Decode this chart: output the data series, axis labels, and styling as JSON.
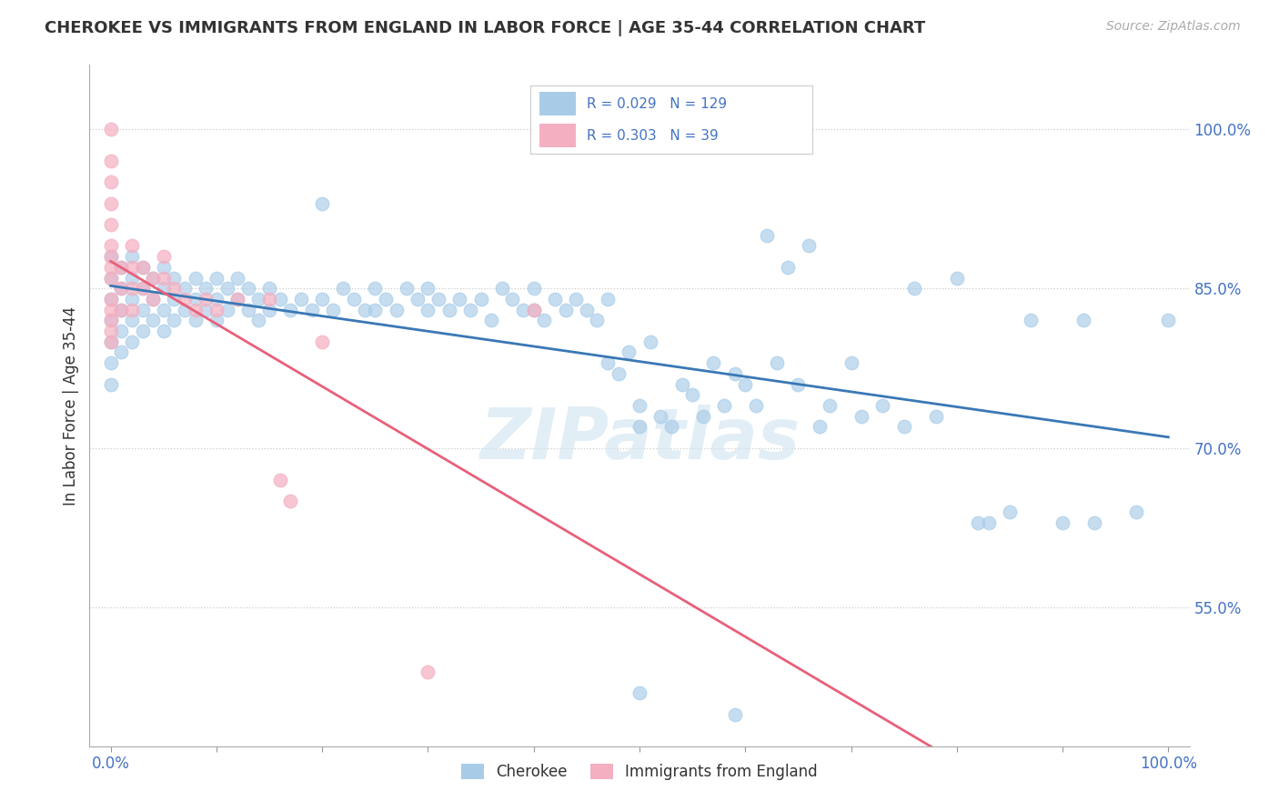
{
  "title": "CHEROKEE VS IMMIGRANTS FROM ENGLAND IN LABOR FORCE | AGE 35-44 CORRELATION CHART",
  "source": "Source: ZipAtlas.com",
  "ylabel": "In Labor Force | Age 35-44",
  "xlim": [
    -0.02,
    1.02
  ],
  "ylim": [
    0.42,
    1.06
  ],
  "ytick_positions": [
    0.55,
    0.7,
    0.85,
    1.0
  ],
  "yticklabels": [
    "55.0%",
    "70.0%",
    "85.0%",
    "100.0%"
  ],
  "legend_labels": [
    "Cherokee",
    "Immigrants from England"
  ],
  "blue_R": "R = 0.029",
  "blue_N": "N = 129",
  "pink_R": "R = 0.303",
  "pink_N": "N = 39",
  "blue_color": "#a8cce8",
  "pink_color": "#f4afc0",
  "blue_line_color": "#3a78b5",
  "pink_line_color": "#e8607a",
  "watermark": "ZIPatlas",
  "blue_points": [
    [
      0.0,
      0.88
    ],
    [
      0.0,
      0.86
    ],
    [
      0.0,
      0.84
    ],
    [
      0.0,
      0.82
    ],
    [
      0.0,
      0.8
    ],
    [
      0.0,
      0.78
    ],
    [
      0.0,
      0.76
    ],
    [
      0.01,
      0.87
    ],
    [
      0.01,
      0.85
    ],
    [
      0.01,
      0.83
    ],
    [
      0.01,
      0.81
    ],
    [
      0.01,
      0.79
    ],
    [
      0.02,
      0.88
    ],
    [
      0.02,
      0.86
    ],
    [
      0.02,
      0.84
    ],
    [
      0.02,
      0.82
    ],
    [
      0.02,
      0.8
    ],
    [
      0.03,
      0.87
    ],
    [
      0.03,
      0.85
    ],
    [
      0.03,
      0.83
    ],
    [
      0.03,
      0.81
    ],
    [
      0.04,
      0.86
    ],
    [
      0.04,
      0.84
    ],
    [
      0.04,
      0.82
    ],
    [
      0.05,
      0.87
    ],
    [
      0.05,
      0.85
    ],
    [
      0.05,
      0.83
    ],
    [
      0.05,
      0.81
    ],
    [
      0.06,
      0.86
    ],
    [
      0.06,
      0.84
    ],
    [
      0.06,
      0.82
    ],
    [
      0.07,
      0.85
    ],
    [
      0.07,
      0.83
    ],
    [
      0.08,
      0.86
    ],
    [
      0.08,
      0.84
    ],
    [
      0.08,
      0.82
    ],
    [
      0.09,
      0.85
    ],
    [
      0.09,
      0.83
    ],
    [
      0.1,
      0.86
    ],
    [
      0.1,
      0.84
    ],
    [
      0.1,
      0.82
    ],
    [
      0.11,
      0.85
    ],
    [
      0.11,
      0.83
    ],
    [
      0.12,
      0.86
    ],
    [
      0.12,
      0.84
    ],
    [
      0.13,
      0.85
    ],
    [
      0.13,
      0.83
    ],
    [
      0.14,
      0.84
    ],
    [
      0.14,
      0.82
    ],
    [
      0.15,
      0.85
    ],
    [
      0.15,
      0.83
    ],
    [
      0.16,
      0.84
    ],
    [
      0.17,
      0.83
    ],
    [
      0.18,
      0.84
    ],
    [
      0.19,
      0.83
    ],
    [
      0.2,
      0.93
    ],
    [
      0.2,
      0.84
    ],
    [
      0.21,
      0.83
    ],
    [
      0.22,
      0.85
    ],
    [
      0.23,
      0.84
    ],
    [
      0.24,
      0.83
    ],
    [
      0.25,
      0.85
    ],
    [
      0.25,
      0.83
    ],
    [
      0.26,
      0.84
    ],
    [
      0.27,
      0.83
    ],
    [
      0.28,
      0.85
    ],
    [
      0.29,
      0.84
    ],
    [
      0.3,
      0.83
    ],
    [
      0.3,
      0.85
    ],
    [
      0.31,
      0.84
    ],
    [
      0.32,
      0.83
    ],
    [
      0.33,
      0.84
    ],
    [
      0.34,
      0.83
    ],
    [
      0.35,
      0.84
    ],
    [
      0.36,
      0.82
    ],
    [
      0.37,
      0.85
    ],
    [
      0.38,
      0.84
    ],
    [
      0.39,
      0.83
    ],
    [
      0.4,
      0.85
    ],
    [
      0.4,
      0.83
    ],
    [
      0.41,
      0.82
    ],
    [
      0.42,
      0.84
    ],
    [
      0.43,
      0.83
    ],
    [
      0.44,
      0.84
    ],
    [
      0.45,
      0.83
    ],
    [
      0.46,
      0.82
    ],
    [
      0.47,
      0.84
    ],
    [
      0.47,
      0.78
    ],
    [
      0.48,
      0.77
    ],
    [
      0.49,
      0.79
    ],
    [
      0.5,
      0.74
    ],
    [
      0.5,
      0.72
    ],
    [
      0.51,
      0.8
    ],
    [
      0.52,
      0.73
    ],
    [
      0.53,
      0.72
    ],
    [
      0.54,
      0.76
    ],
    [
      0.55,
      0.75
    ],
    [
      0.56,
      0.73
    ],
    [
      0.57,
      0.78
    ],
    [
      0.58,
      0.74
    ],
    [
      0.59,
      0.77
    ],
    [
      0.6,
      0.76
    ],
    [
      0.61,
      0.74
    ],
    [
      0.62,
      0.9
    ],
    [
      0.63,
      0.78
    ],
    [
      0.64,
      0.87
    ],
    [
      0.65,
      0.76
    ],
    [
      0.66,
      0.89
    ],
    [
      0.67,
      0.72
    ],
    [
      0.68,
      0.74
    ],
    [
      0.7,
      0.78
    ],
    [
      0.71,
      0.73
    ],
    [
      0.73,
      0.74
    ],
    [
      0.75,
      0.72
    ],
    [
      0.76,
      0.85
    ],
    [
      0.78,
      0.73
    ],
    [
      0.8,
      0.86
    ],
    [
      0.82,
      0.63
    ],
    [
      0.83,
      0.63
    ],
    [
      0.85,
      0.64
    ],
    [
      0.87,
      0.82
    ],
    [
      0.9,
      0.63
    ],
    [
      0.92,
      0.82
    ],
    [
      0.93,
      0.63
    ],
    [
      0.97,
      0.64
    ],
    [
      0.5,
      0.47
    ],
    [
      0.59,
      0.45
    ],
    [
      1.0,
      0.82
    ]
  ],
  "pink_points": [
    [
      0.0,
      1.0
    ],
    [
      0.0,
      0.97
    ],
    [
      0.0,
      0.95
    ],
    [
      0.0,
      0.93
    ],
    [
      0.0,
      0.91
    ],
    [
      0.0,
      0.89
    ],
    [
      0.0,
      0.88
    ],
    [
      0.0,
      0.87
    ],
    [
      0.0,
      0.86
    ],
    [
      0.0,
      0.84
    ],
    [
      0.0,
      0.83
    ],
    [
      0.0,
      0.82
    ],
    [
      0.0,
      0.81
    ],
    [
      0.0,
      0.8
    ],
    [
      0.01,
      0.87
    ],
    [
      0.01,
      0.85
    ],
    [
      0.01,
      0.83
    ],
    [
      0.02,
      0.89
    ],
    [
      0.02,
      0.87
    ],
    [
      0.02,
      0.85
    ],
    [
      0.02,
      0.83
    ],
    [
      0.03,
      0.87
    ],
    [
      0.03,
      0.85
    ],
    [
      0.04,
      0.86
    ],
    [
      0.04,
      0.84
    ],
    [
      0.05,
      0.88
    ],
    [
      0.05,
      0.86
    ],
    [
      0.06,
      0.85
    ],
    [
      0.07,
      0.84
    ],
    [
      0.08,
      0.83
    ],
    [
      0.09,
      0.84
    ],
    [
      0.1,
      0.83
    ],
    [
      0.12,
      0.84
    ],
    [
      0.15,
      0.84
    ],
    [
      0.2,
      0.8
    ],
    [
      0.16,
      0.67
    ],
    [
      0.17,
      0.65
    ],
    [
      0.3,
      0.49
    ],
    [
      0.4,
      0.83
    ]
  ]
}
